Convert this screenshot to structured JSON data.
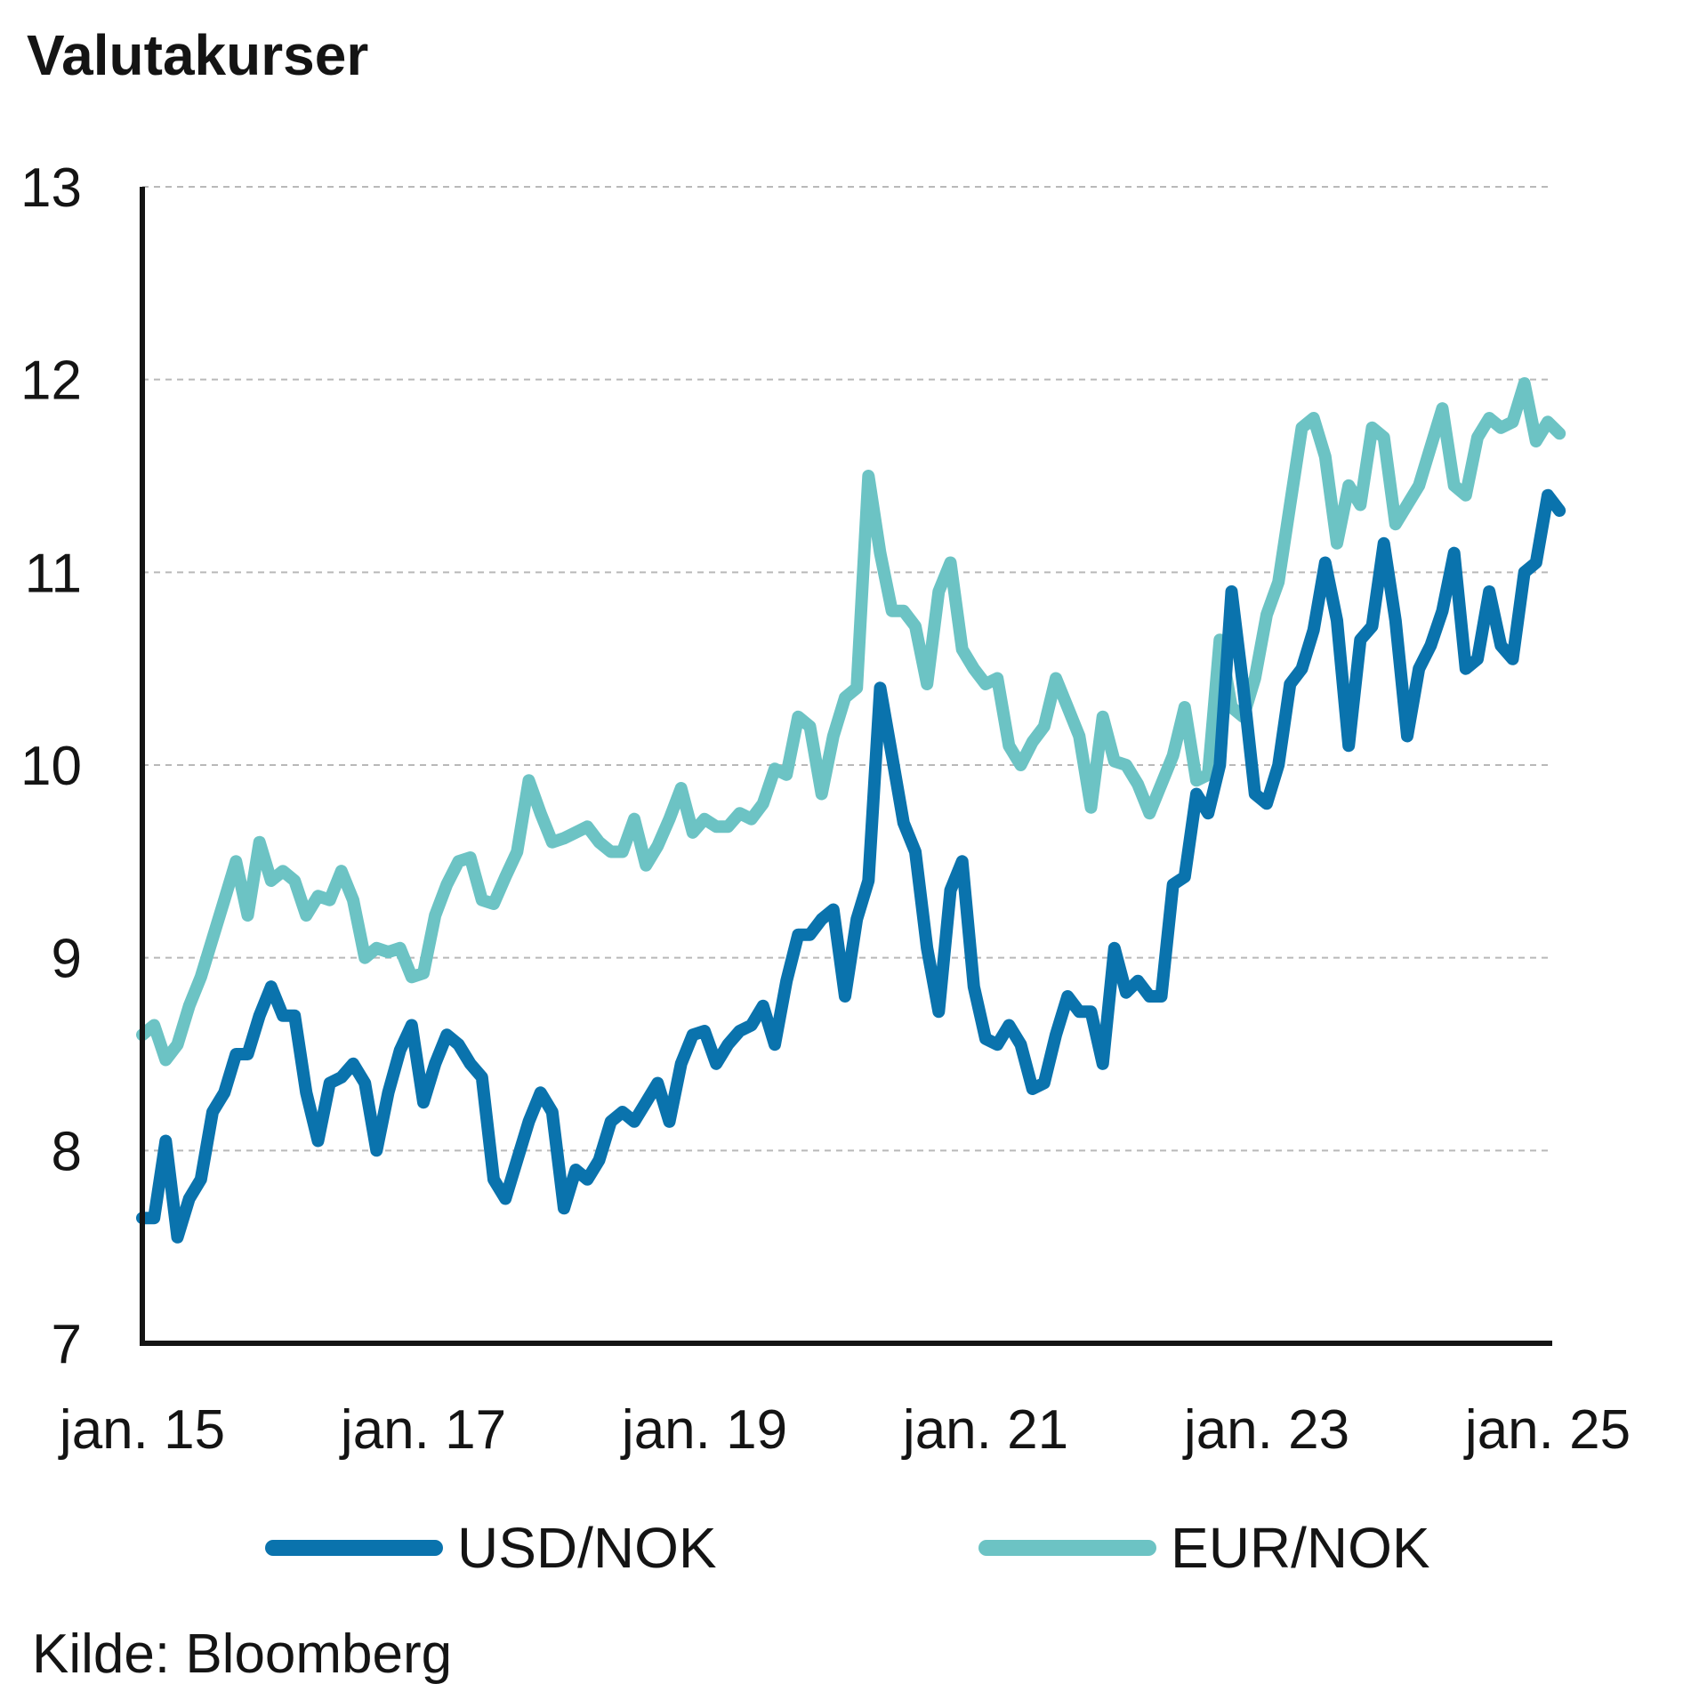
{
  "title": "Valutakurser",
  "source": "Kilde: Bloomberg",
  "colors": {
    "usd_nok": "#0a73ad",
    "eur_nok": "#6cc3c4",
    "axis": "#141414",
    "grid": "#b9b9b9"
  },
  "legend": [
    {
      "label": "USD/NOK",
      "color": "#0a73ad"
    },
    {
      "label": "EUR/NOK",
      "color": "#6cc3c4"
    }
  ],
  "chart_data": {
    "type": "line",
    "title": "Valutakurser",
    "xlabel": "",
    "ylabel": "",
    "xlim": [
      "2015-01",
      "2025-01"
    ],
    "ylim": [
      7,
      13
    ],
    "yticks": [
      7,
      8,
      9,
      10,
      11,
      12,
      13
    ],
    "xticks": [
      "2015-01",
      "2017-01",
      "2019-01",
      "2021-01",
      "2023-01",
      "2025-01"
    ],
    "xtick_labels": [
      "jan. 15",
      "jan. 17",
      "jan. 19",
      "jan. 21",
      "jan. 23",
      "jan. 25"
    ],
    "grid": true,
    "legend_position": "bottom",
    "series": [
      {
        "name": "USD/NOK",
        "color": "#0a73ad",
        "points": [
          [
            "2015-01",
            7.65
          ],
          [
            "2015-02",
            7.65
          ],
          [
            "2015-03",
            8.05
          ],
          [
            "2015-04",
            7.55
          ],
          [
            "2015-05",
            7.75
          ],
          [
            "2015-06",
            7.85
          ],
          [
            "2015-07",
            8.2
          ],
          [
            "2015-08",
            8.3
          ],
          [
            "2015-09",
            8.5
          ],
          [
            "2015-10",
            8.5
          ],
          [
            "2015-11",
            8.7
          ],
          [
            "2015-12",
            8.85
          ],
          [
            "2016-01",
            8.7
          ],
          [
            "2016-02",
            8.7
          ],
          [
            "2016-03",
            8.3
          ],
          [
            "2016-04",
            8.05
          ],
          [
            "2016-05",
            8.35
          ],
          [
            "2016-06",
            8.38
          ],
          [
            "2016-07",
            8.45
          ],
          [
            "2016-08",
            8.35
          ],
          [
            "2016-09",
            8.0
          ],
          [
            "2016-10",
            8.3
          ],
          [
            "2016-11",
            8.52
          ],
          [
            "2016-12",
            8.65
          ],
          [
            "2017-01",
            8.25
          ],
          [
            "2017-02",
            8.45
          ],
          [
            "2017-03",
            8.6
          ],
          [
            "2017-04",
            8.55
          ],
          [
            "2017-05",
            8.45
          ],
          [
            "2017-06",
            8.38
          ],
          [
            "2017-07",
            7.85
          ],
          [
            "2017-08",
            7.75
          ],
          [
            "2017-09",
            7.95
          ],
          [
            "2017-10",
            8.15
          ],
          [
            "2017-11",
            8.3
          ],
          [
            "2017-12",
            8.2
          ],
          [
            "2018-01",
            7.7
          ],
          [
            "2018-02",
            7.9
          ],
          [
            "2018-03",
            7.85
          ],
          [
            "2018-04",
            7.95
          ],
          [
            "2018-05",
            8.15
          ],
          [
            "2018-06",
            8.2
          ],
          [
            "2018-07",
            8.15
          ],
          [
            "2018-08",
            8.25
          ],
          [
            "2018-09",
            8.35
          ],
          [
            "2018-10",
            8.15
          ],
          [
            "2018-11",
            8.45
          ],
          [
            "2018-12",
            8.6
          ],
          [
            "2019-01",
            8.62
          ],
          [
            "2019-02",
            8.45
          ],
          [
            "2019-03",
            8.55
          ],
          [
            "2019-04",
            8.62
          ],
          [
            "2019-05",
            8.65
          ],
          [
            "2019-06",
            8.75
          ],
          [
            "2019-07",
            8.55
          ],
          [
            "2019-08",
            8.88
          ],
          [
            "2019-09",
            9.12
          ],
          [
            "2019-10",
            9.12
          ],
          [
            "2019-11",
            9.2
          ],
          [
            "2019-12",
            9.25
          ],
          [
            "2020-01",
            8.8
          ],
          [
            "2020-02",
            9.2
          ],
          [
            "2020-03",
            9.4
          ],
          [
            "2020-04",
            10.4
          ],
          [
            "2020-05",
            10.05
          ],
          [
            "2020-06",
            9.7
          ],
          [
            "2020-07",
            9.55
          ],
          [
            "2020-08",
            9.05
          ],
          [
            "2020-09",
            8.72
          ],
          [
            "2020-10",
            9.35
          ],
          [
            "2020-11",
            9.5
          ],
          [
            "2020-12",
            8.85
          ],
          [
            "2021-01",
            8.58
          ],
          [
            "2021-02",
            8.55
          ],
          [
            "2021-03",
            8.65
          ],
          [
            "2021-04",
            8.55
          ],
          [
            "2021-05",
            8.32
          ],
          [
            "2021-06",
            8.35
          ],
          [
            "2021-07",
            8.6
          ],
          [
            "2021-08",
            8.8
          ],
          [
            "2021-09",
            8.72
          ],
          [
            "2021-10",
            8.72
          ],
          [
            "2021-11",
            8.45
          ],
          [
            "2021-12",
            9.05
          ],
          [
            "2022-01",
            8.82
          ],
          [
            "2022-02",
            8.88
          ],
          [
            "2022-03",
            8.8
          ],
          [
            "2022-04",
            8.8
          ],
          [
            "2022-05",
            9.38
          ],
          [
            "2022-06",
            9.42
          ],
          [
            "2022-07",
            9.85
          ],
          [
            "2022-08",
            9.75
          ],
          [
            "2022-09",
            10.0
          ],
          [
            "2022-10",
            10.9
          ],
          [
            "2022-11",
            10.4
          ],
          [
            "2022-12",
            9.85
          ],
          [
            "2023-01",
            9.8
          ],
          [
            "2023-02",
            10.0
          ],
          [
            "2023-03",
            10.42
          ],
          [
            "2023-04",
            10.5
          ],
          [
            "2023-05",
            10.7
          ],
          [
            "2023-06",
            11.05
          ],
          [
            "2023-07",
            10.75
          ],
          [
            "2023-08",
            10.1
          ],
          [
            "2023-09",
            10.65
          ],
          [
            "2023-10",
            10.72
          ],
          [
            "2023-11",
            11.15
          ],
          [
            "2023-12",
            10.75
          ],
          [
            "2024-01",
            10.15
          ],
          [
            "2024-02",
            10.5
          ],
          [
            "2024-03",
            10.62
          ],
          [
            "2024-04",
            10.8
          ],
          [
            "2024-05",
            11.1
          ],
          [
            "2024-06",
            10.5
          ],
          [
            "2024-07",
            10.55
          ],
          [
            "2024-08",
            10.9
          ],
          [
            "2024-09",
            10.62
          ],
          [
            "2024-10",
            10.55
          ],
          [
            "2024-11",
            11.0
          ],
          [
            "2024-12",
            11.05
          ],
          [
            "2025-01",
            11.4
          ],
          [
            "2025-02",
            11.32
          ]
        ]
      },
      {
        "name": "EUR/NOK",
        "color": "#6cc3c4",
        "points": [
          [
            "2015-01",
            8.6
          ],
          [
            "2015-02",
            8.65
          ],
          [
            "2015-03",
            8.47
          ],
          [
            "2015-04",
            8.55
          ],
          [
            "2015-05",
            8.75
          ],
          [
            "2015-06",
            8.9
          ],
          [
            "2015-07",
            9.1
          ],
          [
            "2015-08",
            9.3
          ],
          [
            "2015-09",
            9.5
          ],
          [
            "2015-10",
            9.22
          ],
          [
            "2015-11",
            9.6
          ],
          [
            "2015-12",
            9.4
          ],
          [
            "2016-01",
            9.45
          ],
          [
            "2016-02",
            9.4
          ],
          [
            "2016-03",
            9.22
          ],
          [
            "2016-04",
            9.32
          ],
          [
            "2016-05",
            9.3
          ],
          [
            "2016-06",
            9.45
          ],
          [
            "2016-07",
            9.3
          ],
          [
            "2016-08",
            9.0
          ],
          [
            "2016-09",
            9.05
          ],
          [
            "2016-10",
            9.03
          ],
          [
            "2016-11",
            9.05
          ],
          [
            "2016-12",
            8.9
          ],
          [
            "2017-01",
            8.92
          ],
          [
            "2017-02",
            9.22
          ],
          [
            "2017-03",
            9.38
          ],
          [
            "2017-04",
            9.5
          ],
          [
            "2017-05",
            9.52
          ],
          [
            "2017-06",
            9.3
          ],
          [
            "2017-07",
            9.28
          ],
          [
            "2017-08",
            9.42
          ],
          [
            "2017-09",
            9.55
          ],
          [
            "2017-10",
            9.92
          ],
          [
            "2017-11",
            9.75
          ],
          [
            "2017-12",
            9.6
          ],
          [
            "2018-01",
            9.62
          ],
          [
            "2018-02",
            9.65
          ],
          [
            "2018-03",
            9.68
          ],
          [
            "2018-04",
            9.6
          ],
          [
            "2018-05",
            9.55
          ],
          [
            "2018-06",
            9.55
          ],
          [
            "2018-07",
            9.72
          ],
          [
            "2018-08",
            9.48
          ],
          [
            "2018-09",
            9.58
          ],
          [
            "2018-10",
            9.72
          ],
          [
            "2018-11",
            9.88
          ],
          [
            "2018-12",
            9.65
          ],
          [
            "2019-01",
            9.72
          ],
          [
            "2019-02",
            9.68
          ],
          [
            "2019-03",
            9.68
          ],
          [
            "2019-04",
            9.75
          ],
          [
            "2019-05",
            9.72
          ],
          [
            "2019-06",
            9.8
          ],
          [
            "2019-07",
            9.98
          ],
          [
            "2019-08",
            9.95
          ],
          [
            "2019-09",
            10.25
          ],
          [
            "2019-10",
            10.2
          ],
          [
            "2019-11",
            9.85
          ],
          [
            "2019-12",
            10.15
          ],
          [
            "2020-01",
            10.35
          ],
          [
            "2020-02",
            10.4
          ],
          [
            "2020-03",
            11.5
          ],
          [
            "2020-04",
            11.1
          ],
          [
            "2020-05",
            10.8
          ],
          [
            "2020-06",
            10.8
          ],
          [
            "2020-07",
            10.72
          ],
          [
            "2020-08",
            10.42
          ],
          [
            "2020-09",
            10.9
          ],
          [
            "2020-10",
            11.05
          ],
          [
            "2020-11",
            10.6
          ],
          [
            "2020-12",
            10.5
          ],
          [
            "2021-01",
            10.42
          ],
          [
            "2021-02",
            10.45
          ],
          [
            "2021-03",
            10.1
          ],
          [
            "2021-04",
            10.0
          ],
          [
            "2021-05",
            10.12
          ],
          [
            "2021-06",
            10.2
          ],
          [
            "2021-07",
            10.45
          ],
          [
            "2021-08",
            10.3
          ],
          [
            "2021-09",
            10.15
          ],
          [
            "2021-10",
            9.78
          ],
          [
            "2021-11",
            10.25
          ],
          [
            "2021-12",
            10.02
          ],
          [
            "2022-01",
            10.0
          ],
          [
            "2022-02",
            9.9
          ],
          [
            "2022-03",
            9.75
          ],
          [
            "2022-04",
            9.9
          ],
          [
            "2022-05",
            10.05
          ],
          [
            "2022-06",
            10.3
          ],
          [
            "2022-07",
            9.92
          ],
          [
            "2022-08",
            9.95
          ],
          [
            "2022-09",
            10.65
          ],
          [
            "2022-10",
            10.3
          ],
          [
            "2022-11",
            10.25
          ],
          [
            "2022-12",
            10.45
          ],
          [
            "2023-01",
            10.78
          ],
          [
            "2023-02",
            10.95
          ],
          [
            "2023-03",
            11.35
          ],
          [
            "2023-04",
            11.75
          ],
          [
            "2023-05",
            11.8
          ],
          [
            "2023-06",
            11.6
          ],
          [
            "2023-07",
            11.15
          ],
          [
            "2023-08",
            11.45
          ],
          [
            "2023-09",
            11.35
          ],
          [
            "2023-10",
            11.75
          ],
          [
            "2023-11",
            11.7
          ],
          [
            "2023-12",
            11.25
          ],
          [
            "2024-01",
            11.35
          ],
          [
            "2024-02",
            11.45
          ],
          [
            "2024-03",
            11.65
          ],
          [
            "2024-04",
            11.85
          ],
          [
            "2024-05",
            11.45
          ],
          [
            "2024-06",
            11.4
          ],
          [
            "2024-07",
            11.7
          ],
          [
            "2024-08",
            11.8
          ],
          [
            "2024-09",
            11.75
          ],
          [
            "2024-10",
            11.78
          ],
          [
            "2024-11",
            11.98
          ],
          [
            "2024-12",
            11.68
          ],
          [
            "2025-01",
            11.78
          ],
          [
            "2025-02",
            11.72
          ]
        ]
      }
    ]
  }
}
